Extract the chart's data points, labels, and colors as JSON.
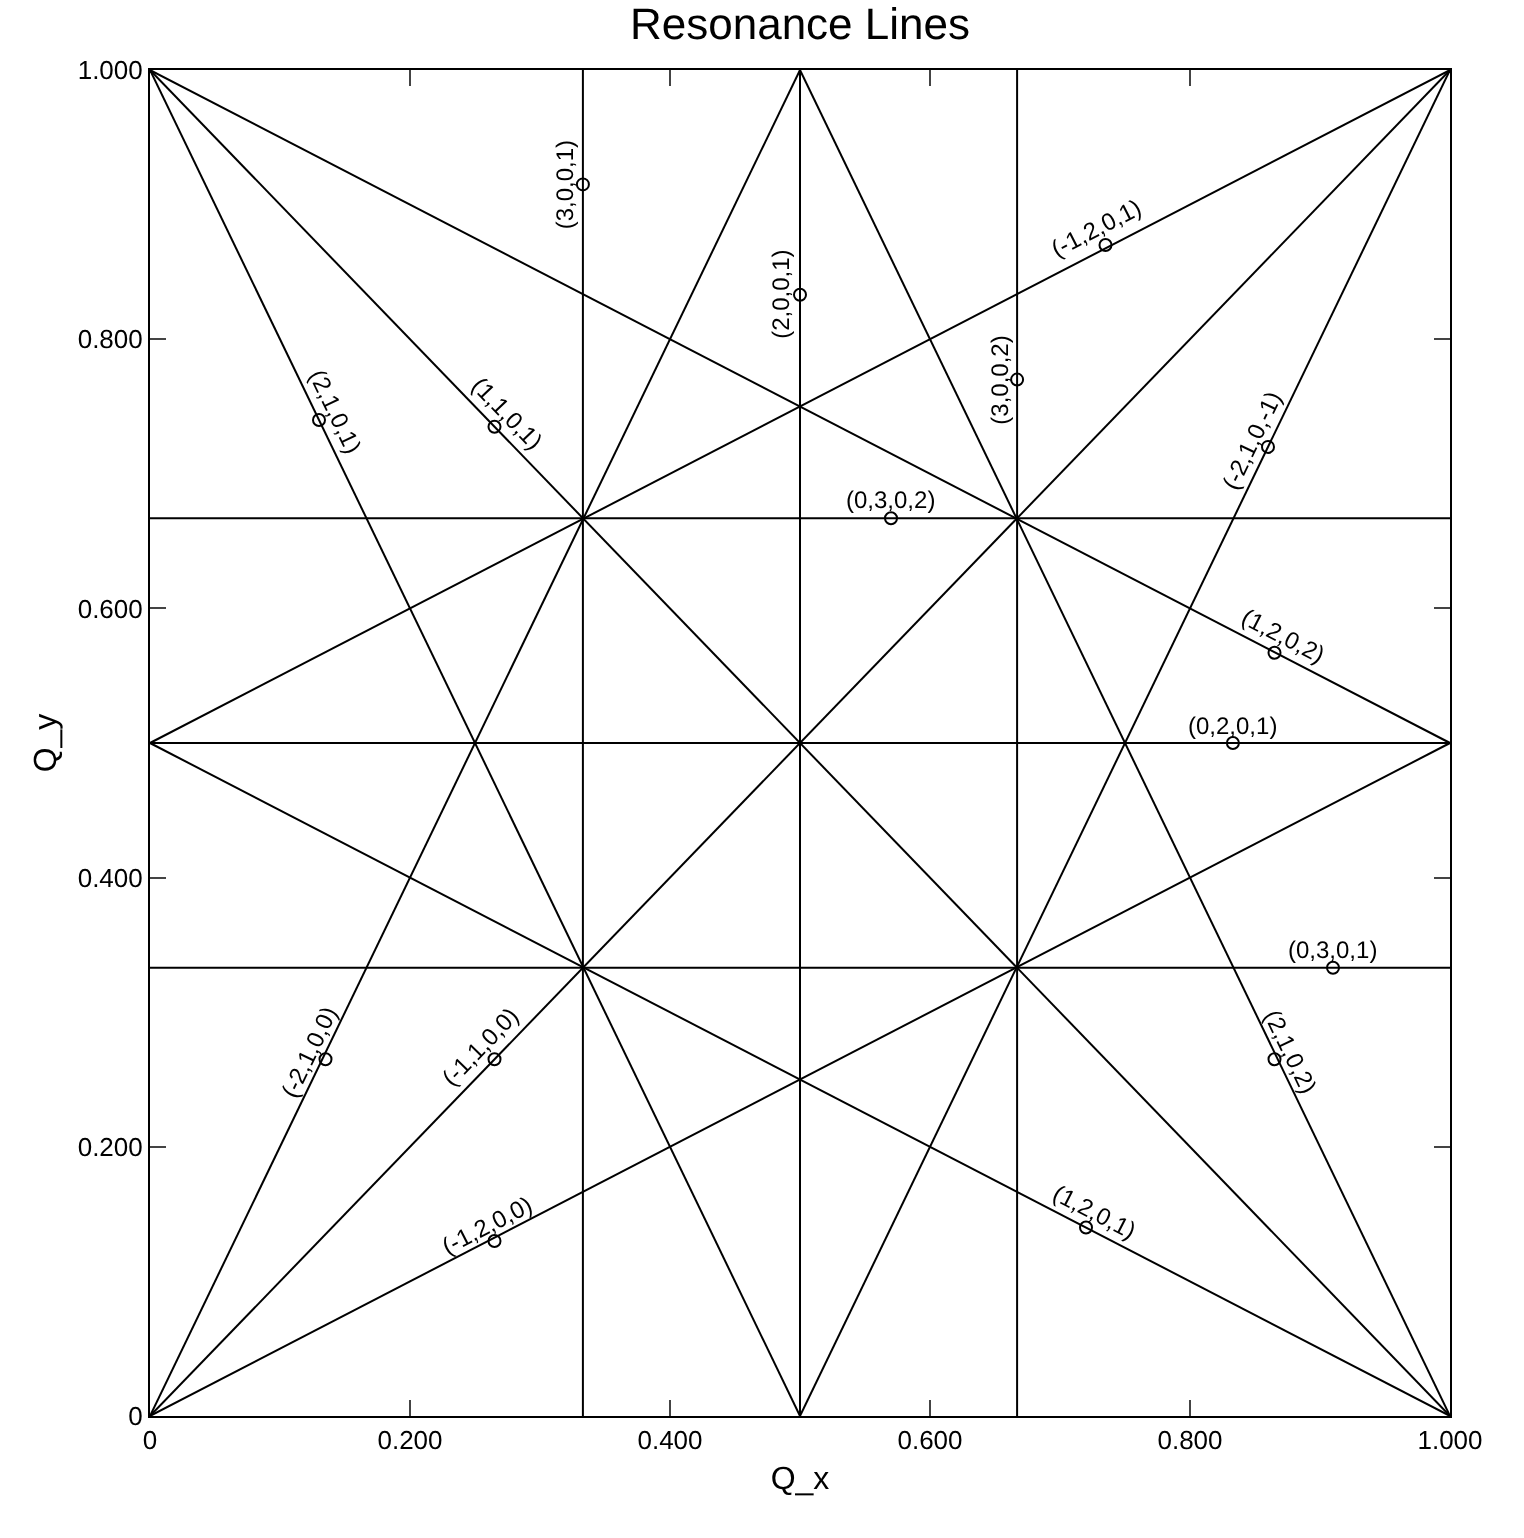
{
  "chart_data": {
    "type": "line",
    "title": "Resonance Lines",
    "xlabel": "Q_x",
    "ylabel": "Q_y",
    "xlim": [
      0,
      1
    ],
    "ylim": [
      0,
      1
    ],
    "xticks": [
      0,
      {
        "value": 0.2,
        "label": "0.200"
      },
      {
        "value": 0.4,
        "label": "0.400"
      },
      {
        "value": 0.6,
        "label": "0.600"
      },
      {
        "value": 0.8,
        "label": "0.800"
      },
      {
        "value": 1,
        "label": "1.000"
      }
    ],
    "yticks": [
      0,
      {
        "value": 0.2,
        "label": "0.200"
      },
      {
        "value": 0.4,
        "label": "0.400"
      },
      {
        "value": 0.6,
        "label": "0.600"
      },
      {
        "value": 0.8,
        "label": "0.800"
      },
      {
        "value": 1,
        "label": "1.000"
      }
    ],
    "grid": false,
    "marker": "none",
    "line_style": "solid",
    "series": [
      {
        "color": "#000000",
        "x": [
          0.333,
          0.333
        ],
        "values": [
          0,
          1
        ]
      },
      {
        "color": "#000000",
        "x": [
          0.5,
          0.5
        ],
        "values": [
          0,
          1
        ]
      },
      {
        "color": "#000000",
        "x": [
          0.667,
          0.667
        ],
        "values": [
          0,
          1
        ]
      },
      {
        "color": "#000000",
        "x": [
          0,
          1
        ],
        "values": [
          0.333,
          0.333
        ]
      },
      {
        "color": "#000000",
        "x": [
          0,
          1
        ],
        "values": [
          0.5,
          0.5
        ]
      },
      {
        "color": "#000000",
        "x": [
          0,
          1
        ],
        "values": [
          0.667,
          0.667
        ]
      },
      {
        "color": "#000000",
        "x": [
          0,
          1
        ],
        "values": [
          0,
          1
        ]
      },
      {
        "color": "#000000",
        "x": [
          0,
          1
        ],
        "values": [
          1,
          0
        ]
      },
      {
        "color": "#000000",
        "x": [
          0,
          0.5
        ],
        "values": [
          1,
          0
        ]
      },
      {
        "color": "#000000",
        "x": [
          0.5,
          1
        ],
        "values": [
          1,
          0
        ]
      },
      {
        "color": "#000000",
        "x": [
          0,
          1
        ],
        "values": [
          0.5,
          0
        ]
      },
      {
        "color": "#000000",
        "x": [
          0,
          1
        ],
        "values": [
          1,
          0.5
        ]
      },
      {
        "color": "#000000",
        "x": [
          0,
          0.5
        ],
        "values": [
          0,
          1
        ]
      },
      {
        "color": "#000000",
        "x": [
          0.5,
          1
        ],
        "values": [
          0,
          1
        ]
      },
      {
        "color": "#000000",
        "x": [
          0,
          1
        ],
        "values": [
          0,
          0.5
        ]
      },
      {
        "color": "#000000",
        "x": [
          0,
          1
        ],
        "values": [
          0.5,
          1
        ]
      },
      {
        "type": "scatter",
        "marker": "circle",
        "color": "#000000",
        "x": [
          0.333,
          0.5,
          0.667,
          0.57,
          0.833,
          0.91,
          0.265,
          0.265,
          0.13,
          0.865,
          0.72,
          0.865,
          0.135,
          0.86,
          0.265,
          0.735
        ],
        "values": [
          0.915,
          0.833,
          0.77,
          0.667,
          0.5,
          0.333,
          0.265,
          0.735,
          0.74,
          0.265,
          0.14,
          0.567,
          0.265,
          0.72,
          0.13,
          0.87
        ]
      }
    ],
    "annotations": [
      {
        "text": "(3,0,0,1)",
        "x": 0.333,
        "y": 0.915
      },
      {
        "text": "(2,0,0,1)",
        "x": 0.5,
        "y": 0.833
      },
      {
        "text": "(3,0,0,2)",
        "x": 0.667,
        "y": 0.77
      },
      {
        "text": "(0,3,0,2)",
        "x": 0.57,
        "y": 0.667
      },
      {
        "text": "(0,2,0,1)",
        "x": 0.833,
        "y": 0.5
      },
      {
        "text": "(0,3,0,1)",
        "x": 0.91,
        "y": 0.333
      },
      {
        "text": "(-1,1,0,0)",
        "x": 0.265,
        "y": 0.265
      },
      {
        "text": "(1,1,0,1)",
        "x": 0.265,
        "y": 0.735
      },
      {
        "text": "(2,1,0,1)",
        "x": 0.13,
        "y": 0.74
      },
      {
        "text": "(2,1,0,2)",
        "x": 0.865,
        "y": 0.265
      },
      {
        "text": "(1,2,0,1)",
        "x": 0.72,
        "y": 0.14
      },
      {
        "text": "(1,2,0,2)",
        "x": 0.865,
        "y": 0.567
      },
      {
        "text": "(-2,1,0,0)",
        "x": 0.135,
        "y": 0.265
      },
      {
        "text": "(-2,1,0,-1)",
        "x": 0.86,
        "y": 0.72
      },
      {
        "text": "(-1,2,0,0)",
        "x": 0.265,
        "y": 0.13
      },
      {
        "text": "(-1,2,0,1)",
        "x": 0.735,
        "y": 0.87
      }
    ]
  }
}
